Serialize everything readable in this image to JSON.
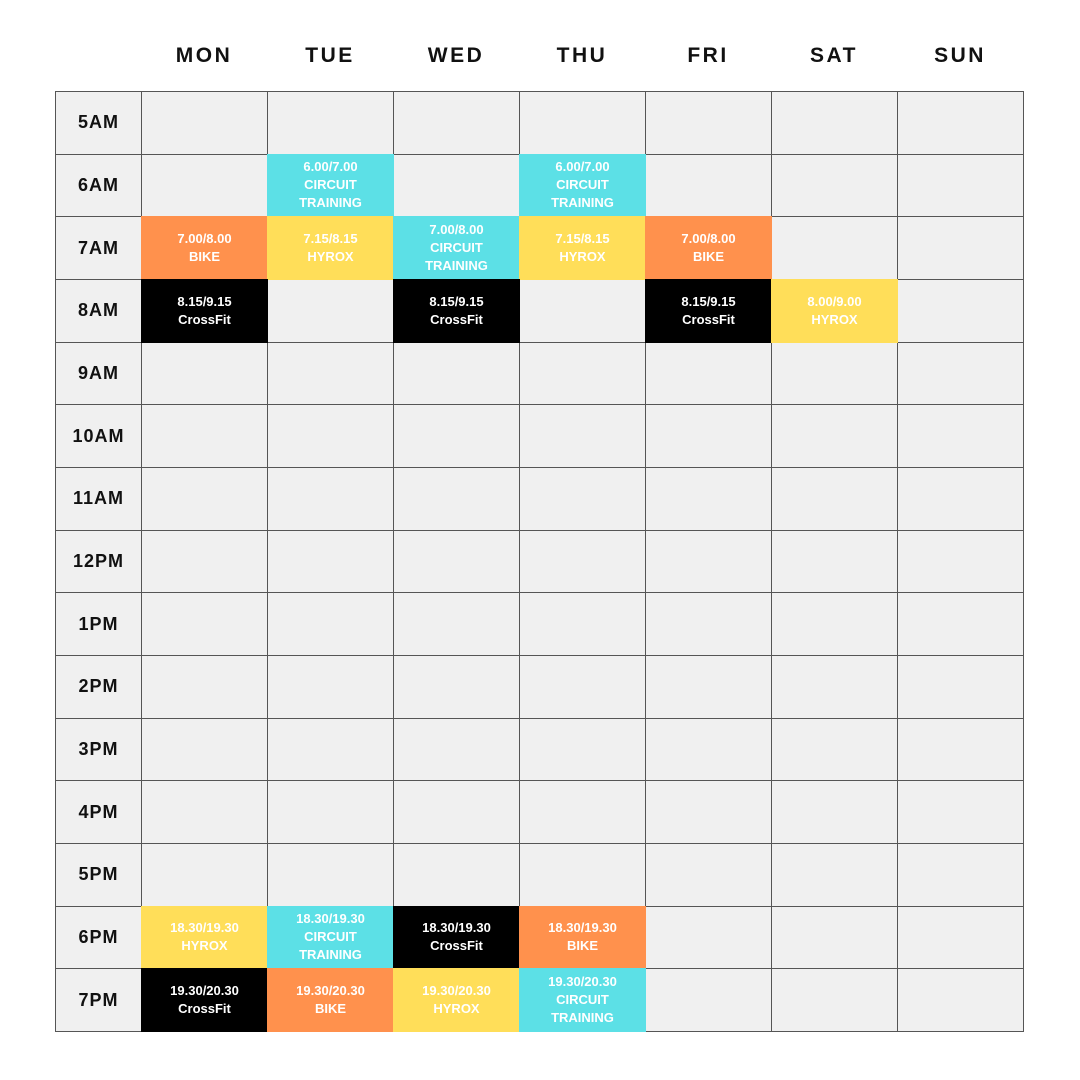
{
  "days": [
    "MON",
    "TUE",
    "WED",
    "THU",
    "FRI",
    "SAT",
    "SUN"
  ],
  "times": [
    "5AM",
    "6AM",
    "7AM",
    "8AM",
    "9AM",
    "10AM",
    "11AM",
    "12PM",
    "1PM",
    "2PM",
    "3PM",
    "4PM",
    "5PM",
    "6PM",
    "7PM"
  ],
  "colors": {
    "circuit": "#5ce0e6",
    "bike": "#ff914d",
    "hyrox": "#ffde59",
    "crossfit": "#000000",
    "cell": "#f0f0f0",
    "border": "#555555"
  },
  "events": [
    {
      "day": "TUE",
      "hour": "6AM",
      "time": "6.00/7.00",
      "name": "CIRCUIT TRAINING",
      "type": "circuit"
    },
    {
      "day": "THU",
      "hour": "6AM",
      "time": "6.00/7.00",
      "name": "CIRCUIT TRAINING",
      "type": "circuit"
    },
    {
      "day": "MON",
      "hour": "7AM",
      "time": "7.00/8.00",
      "name": "BIKE",
      "type": "bike"
    },
    {
      "day": "TUE",
      "hour": "7AM",
      "time": "7.15/8.15",
      "name": "HYROX",
      "type": "hyrox"
    },
    {
      "day": "WED",
      "hour": "7AM",
      "time": "7.00/8.00",
      "name": "CIRCUIT TRAINING",
      "type": "circuit"
    },
    {
      "day": "THU",
      "hour": "7AM",
      "time": "7.15/8.15",
      "name": "HYROX",
      "type": "hyrox"
    },
    {
      "day": "FRI",
      "hour": "7AM",
      "time": "7.00/8.00",
      "name": "BIKE",
      "type": "bike"
    },
    {
      "day": "MON",
      "hour": "8AM",
      "time": "8.15/9.15",
      "name": "CrossFit",
      "type": "crossfit"
    },
    {
      "day": "WED",
      "hour": "8AM",
      "time": "8.15/9.15",
      "name": "CrossFit",
      "type": "crossfit"
    },
    {
      "day": "FRI",
      "hour": "8AM",
      "time": "8.15/9.15",
      "name": "CrossFit",
      "type": "crossfit"
    },
    {
      "day": "SAT",
      "hour": "8AM",
      "time": "8.00/9.00",
      "name": "HYROX",
      "type": "hyrox"
    },
    {
      "day": "MON",
      "hour": "6PM",
      "time": "18.30/19.30",
      "name": "HYROX",
      "type": "hyrox"
    },
    {
      "day": "TUE",
      "hour": "6PM",
      "time": "18.30/19.30",
      "name": "CIRCUIT TRAINING",
      "type": "circuit"
    },
    {
      "day": "WED",
      "hour": "6PM",
      "time": "18.30/19.30",
      "name": "CrossFit",
      "type": "crossfit"
    },
    {
      "day": "THU",
      "hour": "6PM",
      "time": "18.30/19.30",
      "name": "BIKE",
      "type": "bike"
    },
    {
      "day": "MON",
      "hour": "7PM",
      "time": "19.30/20.30",
      "name": "CrossFit",
      "type": "crossfit"
    },
    {
      "day": "TUE",
      "hour": "7PM",
      "time": "19.30/20.30",
      "name": "BIKE",
      "type": "bike"
    },
    {
      "day": "WED",
      "hour": "7PM",
      "time": "19.30/20.30",
      "name": "HYROX",
      "type": "hyrox"
    },
    {
      "day": "THU",
      "hour": "7PM",
      "time": "19.30/20.30",
      "name": "CIRCUIT TRAINING",
      "type": "circuit"
    }
  ]
}
